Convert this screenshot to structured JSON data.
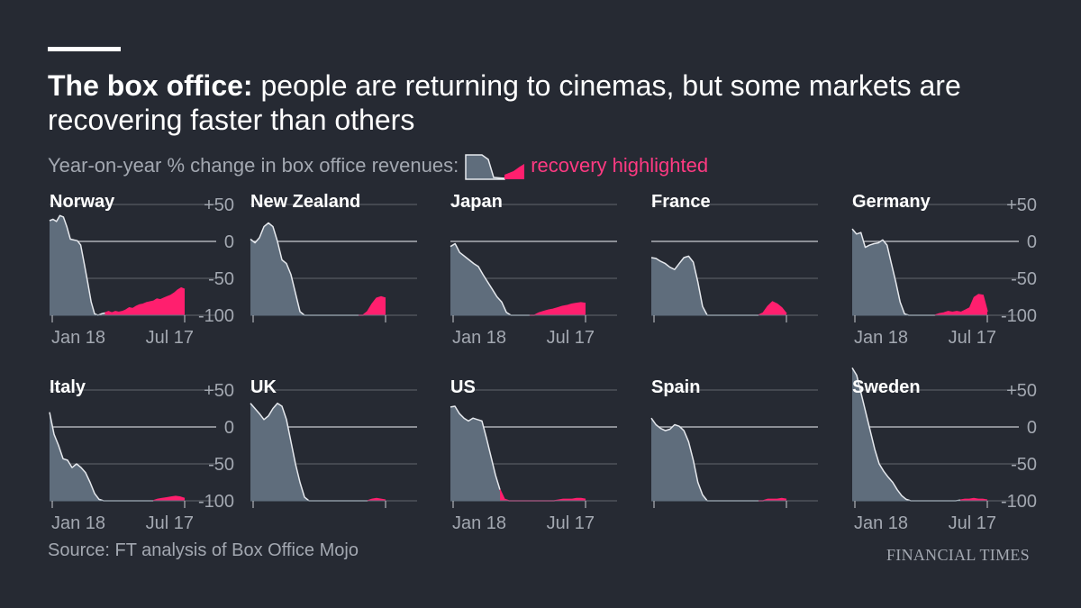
{
  "header": {
    "title_bold": "The box office:",
    "title_rest": " people are returning to cinemas, but some markets are recovering faster than others",
    "subtitle": "Year-on-year % change in box office revenues:",
    "legend_label": "recovery highlighted"
  },
  "footer": {
    "source": "Source: FT analysis of Box Office Mojo",
    "brand": "FINANCIAL TIMES"
  },
  "colors": {
    "background": "#262a33",
    "area": "#5f6d7c",
    "area_line": "#e6e9ee",
    "recovery": "#ff1f6e",
    "grid": "#62666e",
    "zero_line": "#c9ccd1",
    "muted_text": "#a3a8b1"
  },
  "chart_data": {
    "type": "area",
    "ylim": [
      -100,
      80
    ],
    "yticks": [
      {
        "value": 50,
        "label": "+50"
      },
      {
        "value": 0,
        "label": "0"
      },
      {
        "value": -50,
        "label": "-50"
      },
      {
        "value": -100,
        "label": "-100"
      }
    ],
    "xticks": [
      "Jan 18",
      "Jul 17"
    ],
    "week_range": [
      0,
      27
    ],
    "markets": [
      {
        "name": "Norway",
        "show_y_axis": true,
        "show_x_labels": true,
        "values": [
          28,
          30,
          27,
          35,
          33,
          20,
          3,
          2,
          1,
          -5,
          -30,
          -55,
          -82,
          -98,
          -100,
          -98,
          -97,
          -95,
          -97,
          -95,
          -96,
          -95,
          -93,
          -90,
          -91,
          -88,
          -86,
          -85,
          -83,
          -82,
          -81,
          -78,
          -79,
          -77,
          -75,
          -73,
          -70,
          -66,
          -63,
          -65
        ],
        "recovery_start": 16
      },
      {
        "name": "New Zealand",
        "show_y_axis": false,
        "show_x_labels": false,
        "values": [
          3,
          -2,
          5,
          20,
          25,
          20,
          0,
          -25,
          -30,
          -45,
          -70,
          -95,
          -100,
          -100,
          -100,
          -100,
          -100,
          -100,
          -100,
          -100,
          -100,
          -100,
          -100,
          -100,
          -100,
          -100,
          -95,
          -85,
          -77,
          -75,
          -77
        ],
        "recovery_start": 24
      },
      {
        "name": "Japan",
        "show_y_axis": false,
        "show_x_labels": true,
        "values": [
          -7,
          -3,
          -15,
          -20,
          -25,
          -30,
          -34,
          -45,
          -55,
          -65,
          -75,
          -82,
          -96,
          -100,
          -100,
          -100,
          -100,
          -100,
          -100,
          -97,
          -95,
          -93,
          -92,
          -90,
          -88,
          -87,
          -85,
          -84,
          -83,
          -84
        ],
        "recovery_start": 17
      },
      {
        "name": "France",
        "show_y_axis": false,
        "show_x_labels": false,
        "values": [
          -22,
          -23,
          -27,
          -30,
          -35,
          -38,
          -30,
          -22,
          -20,
          -28,
          -55,
          -88,
          -100,
          -100,
          -100,
          -100,
          -100,
          -100,
          -100,
          -100,
          -100,
          -100,
          -100,
          -100,
          -97,
          -88,
          -82,
          -85,
          -90,
          -98
        ],
        "recovery_start": 23
      },
      {
        "name": "Germany",
        "show_y_axis": true,
        "show_x_labels": true,
        "values": [
          17,
          10,
          12,
          -8,
          -5,
          -3,
          -2,
          2,
          -5,
          -30,
          -55,
          -82,
          -98,
          -100,
          -100,
          -100,
          -100,
          -100,
          -100,
          -100,
          -98,
          -97,
          -95,
          -96,
          -95,
          -96,
          -93,
          -90,
          -76,
          -72,
          -73,
          -95
        ],
        "recovery_start": 19
      },
      {
        "name": "Italy",
        "show_y_axis": true,
        "show_x_labels": true,
        "values": [
          20,
          -10,
          -25,
          -43,
          -45,
          -55,
          -50,
          -55,
          -62,
          -75,
          -90,
          -98,
          -100,
          -100,
          -100,
          -100,
          -100,
          -100,
          -100,
          -100,
          -100,
          -100,
          -100,
          -100,
          -98,
          -97,
          -96,
          -95,
          -94,
          -95,
          -97
        ],
        "recovery_start": 23
      },
      {
        "name": "UK",
        "show_y_axis": false,
        "show_x_labels": false,
        "values": [
          32,
          25,
          18,
          10,
          15,
          25,
          32,
          28,
          10,
          -20,
          -50,
          -75,
          -95,
          -100,
          -100,
          -100,
          -100,
          -100,
          -100,
          -100,
          -100,
          -100,
          -100,
          -100,
          -100,
          -100,
          -100,
          -98,
          -97,
          -98,
          -99
        ],
        "recovery_start": 26
      },
      {
        "name": "US",
        "show_y_axis": false,
        "show_x_labels": true,
        "values": [
          27,
          28,
          18,
          12,
          8,
          12,
          10,
          8,
          -15,
          -40,
          -65,
          -85,
          -98,
          -100,
          -100,
          -100,
          -100,
          -100,
          -100,
          -100,
          -100,
          -100,
          -100,
          -100,
          -99,
          -98,
          -98,
          -98,
          -97,
          -97,
          -98
        ],
        "recovery_start": 11
      },
      {
        "name": "Spain",
        "show_y_axis": false,
        "show_x_labels": false,
        "values": [
          12,
          3,
          -2,
          -5,
          -3,
          3,
          1,
          -5,
          -20,
          -45,
          -75,
          -92,
          -100,
          -100,
          -100,
          -100,
          -100,
          -100,
          -100,
          -100,
          -100,
          -100,
          -100,
          -100,
          -100,
          -98,
          -98,
          -98,
          -97,
          -98
        ],
        "recovery_start": 23
      },
      {
        "name": "Sweden",
        "show_y_axis": true,
        "show_x_labels": true,
        "values": [
          85,
          70,
          45,
          20,
          -5,
          -30,
          -50,
          -60,
          -68,
          -75,
          -85,
          -93,
          -98,
          -100,
          -100,
          -100,
          -100,
          -100,
          -100,
          -100,
          -100,
          -100,
          -100,
          -100,
          -99,
          -98,
          -98,
          -97,
          -98,
          -98,
          -99
        ],
        "recovery_start": 24
      }
    ]
  }
}
